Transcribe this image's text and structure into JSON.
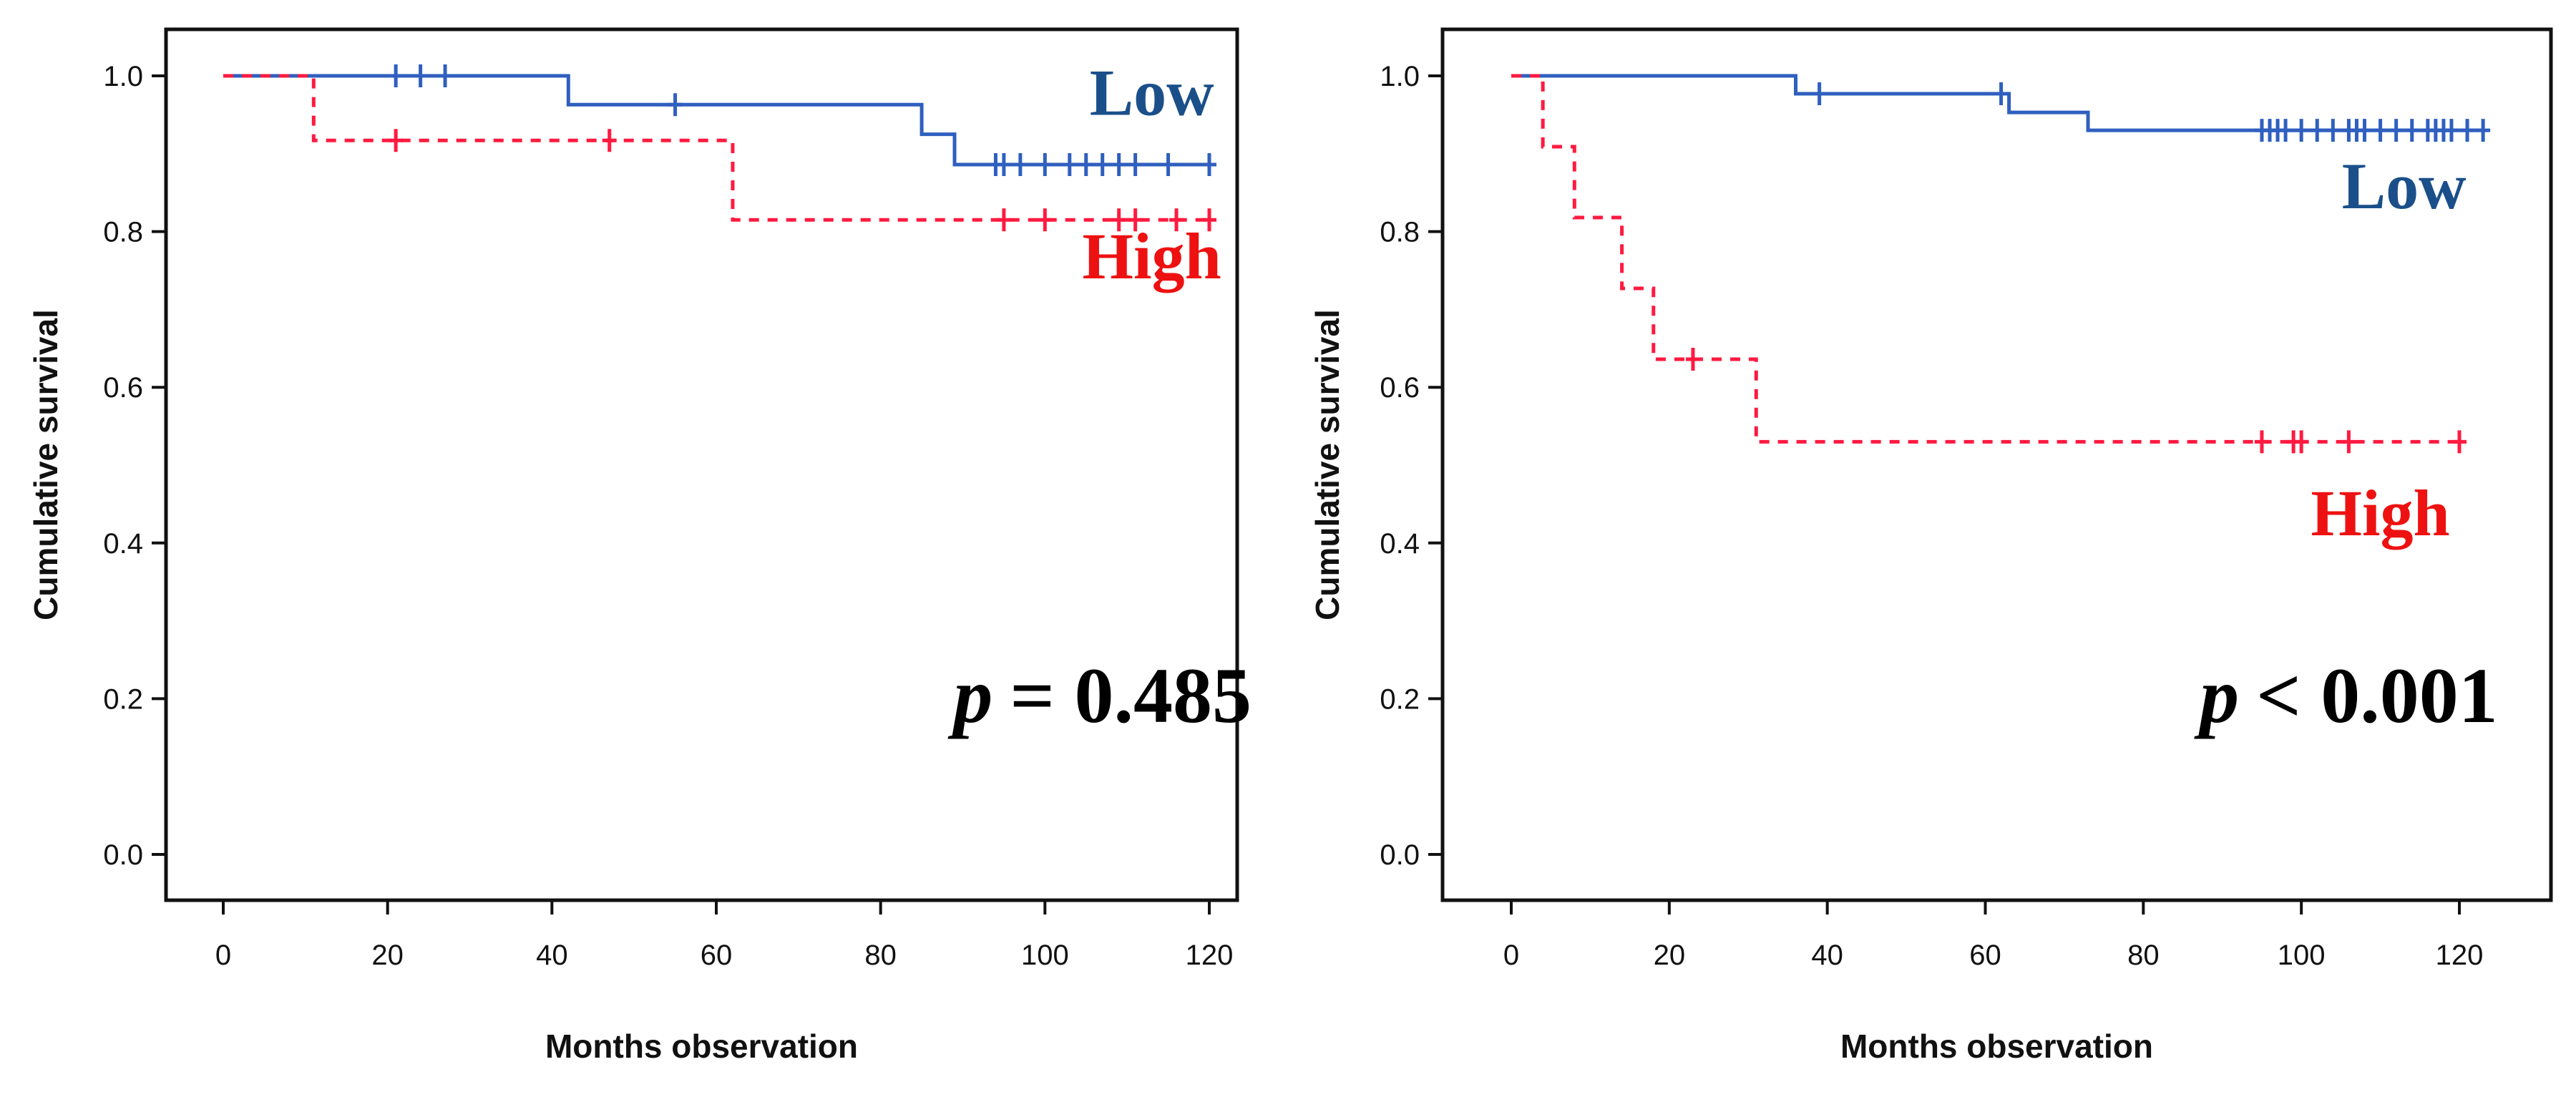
{
  "chart_data": [
    {
      "type": "line",
      "subtype": "kaplan-meier",
      "xlabel": "Months observation",
      "ylabel": "Cumulative survival",
      "xlim": [
        -8,
        128
      ],
      "ylim": [
        -0.05,
        1.07
      ],
      "xticks": [
        "0",
        "20",
        "40",
        "60",
        "80",
        "100",
        "120"
      ],
      "yticks": [
        "0.0",
        "0.2",
        "0.4",
        "0.6",
        "0.8",
        "1.0"
      ],
      "annotation": {
        "italic": "p",
        "text": "= 0.485",
        "x": 107,
        "y": 0.17
      },
      "series": [
        {
          "name": "Low",
          "color": "#2f5fbf",
          "label_color": "#1a4f8a",
          "style": "solid",
          "label_x": 113,
          "label_y": 0.95,
          "steps": [
            [
              0,
              1.0
            ],
            [
              42,
              0.963
            ],
            [
              85,
              0.925
            ],
            [
              89,
              0.886
            ],
            [
              120,
              0.886
            ]
          ],
          "censored": [
            21,
            24,
            27,
            55,
            94,
            95,
            97,
            100,
            103,
            105,
            107,
            109,
            111,
            115,
            120
          ]
        },
        {
          "name": "High",
          "color": "#ff1a40",
          "label_color": "#ee1111",
          "style": "dashed",
          "label_x": 113,
          "label_y": 0.74,
          "steps": [
            [
              0,
              1.0
            ],
            [
              11,
              0.917
            ],
            [
              62,
              0.815
            ],
            [
              120,
              0.815
            ]
          ],
          "censored": [
            21,
            47,
            95,
            100,
            109,
            111,
            116,
            120
          ]
        }
      ]
    },
    {
      "type": "line",
      "subtype": "kaplan-meier",
      "xlabel": "Months observation",
      "ylabel": "Cumulative survival",
      "xlim": [
        -7,
        136
      ],
      "ylim": [
        -0.05,
        1.07
      ],
      "xticks": [
        "0",
        "20",
        "40",
        "60",
        "80",
        "100",
        "120"
      ],
      "yticks": [
        "0.0",
        "0.2",
        "0.4",
        "0.6",
        "0.8",
        "1.0"
      ],
      "annotation": {
        "italic": "p",
        "text": "< 0.001",
        "x": 106,
        "y": 0.17
      },
      "series": [
        {
          "name": "Low",
          "color": "#2f5fbf",
          "label_color": "#1a4f8a",
          "style": "solid",
          "label_x": 113,
          "label_y": 0.83,
          "steps": [
            [
              0,
              1.0
            ],
            [
              36,
              0.977
            ],
            [
              63,
              0.953
            ],
            [
              73,
              0.93
            ],
            [
              123,
              0.93
            ]
          ],
          "censored": [
            39,
            62,
            95,
            96,
            97,
            98,
            100,
            102,
            104,
            106,
            107,
            108,
            110,
            112,
            114,
            116,
            117,
            118,
            119,
            121,
            123
          ]
        },
        {
          "name": "High",
          "color": "#ff1a40",
          "label_color": "#ee1111",
          "style": "dashed",
          "label_x": 110,
          "label_y": 0.41,
          "steps": [
            [
              0,
              1.0
            ],
            [
              4,
              0.909
            ],
            [
              8,
              0.818
            ],
            [
              14,
              0.727
            ],
            [
              18,
              0.636
            ],
            [
              31,
              0.53
            ],
            [
              120,
              0.53
            ]
          ],
          "censored": [
            23,
            95,
            99,
            100,
            106,
            120
          ]
        }
      ]
    }
  ]
}
